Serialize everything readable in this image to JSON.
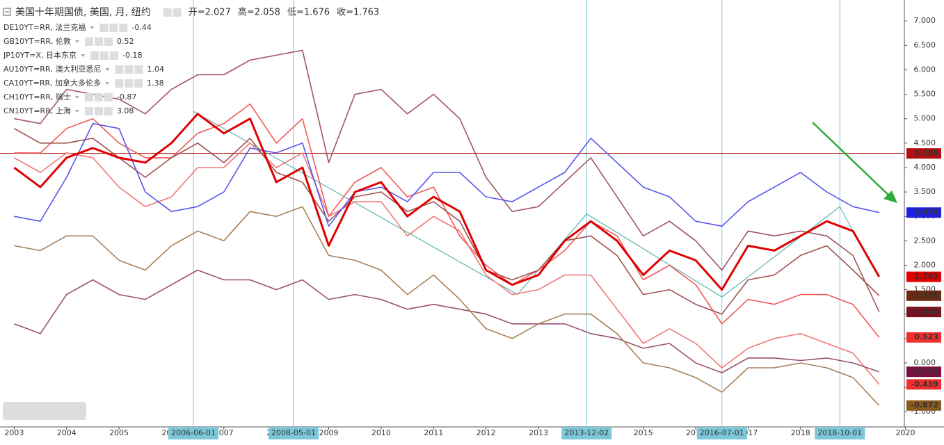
{
  "chart_data": {
    "type": "line",
    "title": "美国十年期国债, 美国, 月, 纽约",
    "quote": [
      {
        "label": "开=",
        "value": 2.027
      },
      {
        "label": "高=",
        "value": 2.058
      },
      {
        "label": "低=",
        "value": 1.676
      },
      {
        "label": "收=",
        "value": 1.763
      }
    ],
    "x": [
      2003,
      2003.5,
      2004,
      2004.5,
      2005,
      2005.5,
      2006,
      2006.5,
      2007,
      2007.5,
      2008,
      2008.5,
      2009,
      2009.5,
      2010,
      2010.5,
      2011,
      2011.5,
      2012,
      2012.5,
      2013,
      2013.5,
      2014,
      2014.5,
      2015,
      2015.5,
      2016,
      2016.5,
      2017,
      2017.5,
      2018,
      2018.5,
      2019,
      2019.5
    ],
    "main": {
      "color": "#e00000",
      "values": [
        4.0,
        3.6,
        4.2,
        4.4,
        4.2,
        4.1,
        4.5,
        5.1,
        4.7,
        5.0,
        3.7,
        4.0,
        2.4,
        3.5,
        3.7,
        3.0,
        3.4,
        3.1,
        1.9,
        1.6,
        1.8,
        2.5,
        2.9,
        2.5,
        1.8,
        2.3,
        2.1,
        1.5,
        2.4,
        2.3,
        2.6,
        2.9,
        2.7,
        1.763
      ]
    },
    "series": [
      {
        "name": "DE10YT=RR, 法兰克福",
        "color": "#f07878",
        "legend_value": -0.44,
        "label_color": "#f03030",
        "values": [
          4.2,
          3.9,
          4.3,
          4.2,
          3.6,
          3.2,
          3.4,
          4.0,
          4.0,
          4.5,
          4.0,
          4.3,
          3.0,
          3.3,
          3.3,
          2.6,
          3.0,
          2.7,
          1.8,
          1.4,
          1.5,
          1.8,
          1.8,
          1.1,
          0.4,
          0.7,
          0.4,
          -0.1,
          0.3,
          0.5,
          0.6,
          0.4,
          0.2,
          -0.439
        ]
      },
      {
        "name": "GB10YT=RR, 伦敦",
        "color": "#f05858",
        "legend_value": 0.52,
        "label_color": "#f03030",
        "values": [
          4.3,
          4.3,
          4.8,
          5.0,
          4.5,
          4.2,
          4.2,
          4.7,
          4.9,
          5.3,
          4.5,
          5.0,
          3.0,
          3.7,
          4.0,
          3.4,
          3.6,
          2.6,
          2.0,
          1.6,
          1.9,
          2.3,
          2.9,
          2.6,
          1.7,
          2.0,
          1.6,
          0.8,
          1.3,
          1.2,
          1.4,
          1.4,
          1.2,
          0.523
        ]
      },
      {
        "name": "JP10YT=X, 日本东京",
        "color": "#9a5070",
        "legend_value": -0.18,
        "label_color": "#7a1040",
        "values": [
          0.8,
          0.6,
          1.4,
          1.7,
          1.4,
          1.3,
          1.6,
          1.9,
          1.7,
          1.7,
          1.5,
          1.7,
          1.3,
          1.4,
          1.3,
          1.1,
          1.2,
          1.1,
          1.0,
          0.8,
          0.8,
          0.8,
          0.6,
          0.5,
          0.3,
          0.4,
          0.0,
          -0.2,
          0.1,
          0.1,
          0.05,
          0.1,
          0.0,
          -0.181
        ]
      },
      {
        "name": "AU10YT=RR, 澳大利亚悉尼",
        "color": "#a05560",
        "legend_value": 1.04,
        "label_color": "#7a1020",
        "values": [
          5.0,
          4.9,
          5.6,
          5.5,
          5.4,
          5.1,
          5.6,
          5.9,
          5.9,
          6.2,
          6.3,
          6.4,
          4.1,
          5.5,
          5.6,
          5.1,
          5.5,
          5.0,
          3.8,
          3.1,
          3.2,
          3.7,
          4.2,
          3.4,
          2.6,
          2.9,
          2.5,
          1.9,
          2.7,
          2.6,
          2.7,
          2.6,
          2.2,
          1.044
        ]
      },
      {
        "name": "CA10YT=RR, 加拿大多伦多",
        "color": "#a0504c",
        "legend_value": 1.38,
        "label_color": "#6b2b10",
        "values": [
          4.8,
          4.5,
          4.5,
          4.6,
          4.2,
          3.8,
          4.2,
          4.5,
          4.1,
          4.6,
          3.9,
          3.7,
          2.9,
          3.4,
          3.5,
          3.1,
          3.3,
          2.9,
          1.9,
          1.7,
          1.9,
          2.5,
          2.6,
          2.2,
          1.4,
          1.5,
          1.2,
          1.0,
          1.7,
          1.8,
          2.2,
          2.4,
          1.9,
          1.376
        ]
      },
      {
        "name": "CH10YT=RR, 瑞士",
        "color": "#a88058",
        "legend_value": -0.87,
        "label_color": "#8a5a20",
        "values": [
          2.4,
          2.3,
          2.6,
          2.6,
          2.1,
          1.9,
          2.4,
          2.7,
          2.5,
          3.1,
          3.0,
          3.2,
          2.2,
          2.1,
          1.9,
          1.4,
          1.8,
          1.3,
          0.7,
          0.5,
          0.8,
          1.0,
          1.0,
          0.6,
          0.0,
          -0.1,
          -0.3,
          -0.6,
          -0.1,
          -0.1,
          0.0,
          -0.1,
          -0.3,
          -0.872
        ]
      },
      {
        "name": "CN10YT=RR, 上海",
        "color": "#5555ee",
        "legend_value": 3.08,
        "label_color": "#2020e0",
        "values": [
          3.0,
          2.9,
          3.8,
          4.9,
          4.8,
          3.5,
          3.1,
          3.2,
          3.5,
          4.4,
          4.3,
          4.5,
          2.8,
          3.5,
          3.6,
          3.3,
          3.9,
          3.9,
          3.4,
          3.3,
          3.6,
          3.9,
          4.6,
          4.1,
          3.6,
          3.4,
          2.9,
          2.8,
          3.3,
          3.6,
          3.9,
          3.5,
          3.2,
          3.078
        ]
      }
    ],
    "hline": {
      "value": 4.289,
      "color": "#b01010"
    },
    "trendline": {
      "color": "#40a8a0",
      "x": [
        2006.42,
        2012.6,
        2013.92,
        2016.5,
        2018.75,
        2019.3
      ],
      "values": [
        5.15,
        1.4,
        3.05,
        1.35,
        3.2,
        2.1
      ]
    },
    "markers": [
      {
        "x": 2006.42,
        "label": "2006-06-01"
      },
      {
        "x": 2008.33,
        "label": "2008-05-01"
      },
      {
        "x": 2013.92,
        "label": "2013-12-02"
      },
      {
        "x": 2016.5,
        "label": "2016-07-01"
      },
      {
        "x": 2018.75,
        "label": "2018-10-01"
      }
    ],
    "xlim": [
      2002.73,
      2019.98
    ],
    "xticks": [
      2003,
      2004,
      2005,
      2006,
      2007,
      2008,
      2009,
      2010,
      2011,
      2012,
      2013,
      2014,
      2015,
      2016,
      2017,
      2018,
      2019,
      2020
    ],
    "ylim": [
      -1.31,
      7.43
    ],
    "yticks": [
      {
        "value": -1,
        "label": "-1.000"
      },
      {
        "value": -0.5,
        "label": "-0.500"
      },
      {
        "value": 0,
        "label": "0.000"
      },
      {
        "value": 0.5,
        "label": "0.500"
      },
      {
        "value": 1,
        "label": "1.000"
      },
      {
        "value": 1.5,
        "label": "1.500"
      },
      {
        "value": 2,
        "label": "2.000"
      },
      {
        "value": 2.5,
        "label": "2.500"
      },
      {
        "value": 3,
        "label": "3.000"
      },
      {
        "value": 3.5,
        "label": "3.500"
      },
      {
        "value": 4,
        "label": "4.000"
      },
      {
        "value": 4.5,
        "label": "4.500"
      },
      {
        "value": 5,
        "label": "5.000"
      },
      {
        "value": 5.5,
        "label": "5.500"
      },
      {
        "value": 6,
        "label": "6.000"
      },
      {
        "value": 6.5,
        "label": "6.500"
      },
      {
        "value": 7,
        "label": "7.000"
      }
    ],
    "grid": false
  }
}
